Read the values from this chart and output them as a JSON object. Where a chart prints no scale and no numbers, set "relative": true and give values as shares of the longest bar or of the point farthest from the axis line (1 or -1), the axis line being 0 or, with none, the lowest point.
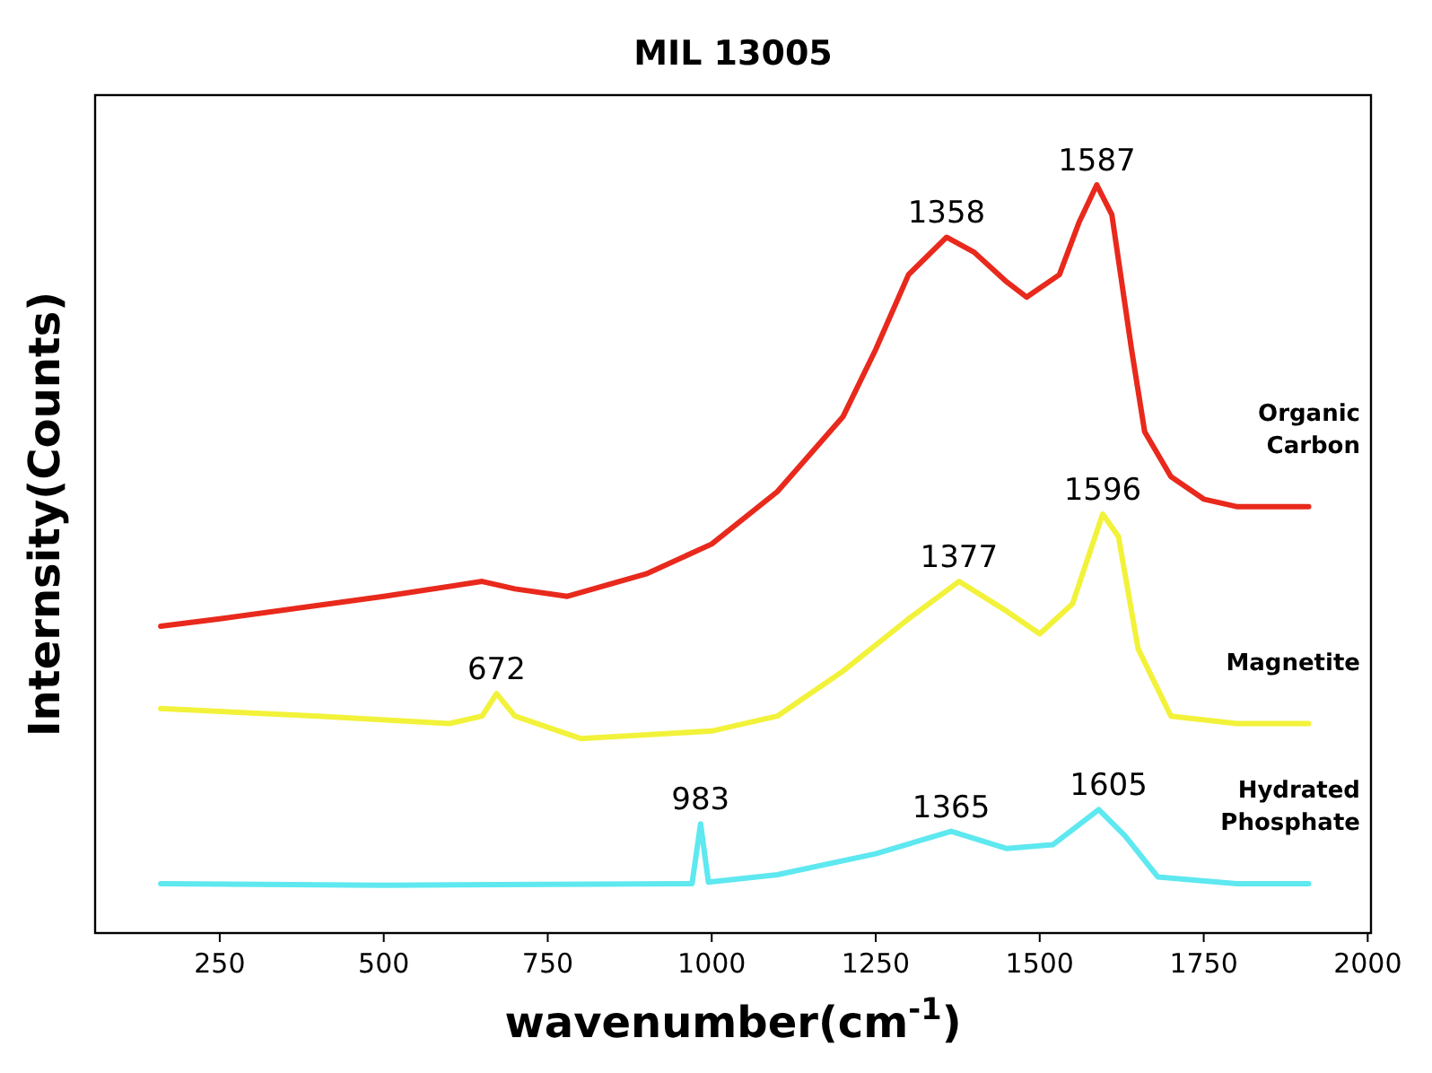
{
  "chart_data": {
    "type": "line",
    "title": "MIL 13005",
    "xlabel": "wavenumber(cm$^{-1}$)",
    "ylabel": "Internsity(Counts)",
    "relative": true,
    "tick_labels": "x",
    "grid": false,
    "xlim": [
      60,
      2005
    ],
    "xticks": [
      250,
      500,
      750,
      1000,
      1250,
      1500,
      1750,
      2000
    ],
    "series": [
      {
        "name": "Organic Carbon",
        "color": "#e8291c",
        "x": [
          160,
          250,
          500,
          650,
          700,
          780,
          900,
          1000,
          1100,
          1200,
          1250,
          1300,
          1358,
          1400,
          1450,
          1480,
          1530,
          1560,
          1587,
          1610,
          1640,
          1660,
          1700,
          1750,
          1800,
          1910
        ],
        "values": [
          0.41,
          0.42,
          0.45,
          0.47,
          0.46,
          0.45,
          0.48,
          0.52,
          0.59,
          0.69,
          0.78,
          0.88,
          0.93,
          0.91,
          0.87,
          0.85,
          0.88,
          0.95,
          1.0,
          0.96,
          0.78,
          0.67,
          0.61,
          0.58,
          0.57,
          0.57
        ]
      },
      {
        "name": "Magnetite",
        "color": "#f2f23a",
        "x": [
          160,
          400,
          600,
          650,
          672,
          700,
          800,
          1000,
          1100,
          1200,
          1300,
          1377,
          1450,
          1500,
          1550,
          1596,
          1620,
          1650,
          1700,
          1800,
          1910
        ],
        "values": [
          0.3,
          0.29,
          0.28,
          0.29,
          0.32,
          0.29,
          0.26,
          0.27,
          0.29,
          0.35,
          0.42,
          0.47,
          0.43,
          0.4,
          0.44,
          0.56,
          0.53,
          0.38,
          0.29,
          0.28,
          0.28
        ]
      },
      {
        "name": "Hydrated Phosphate",
        "color": "#5ee8f0",
        "x": [
          160,
          500,
          970,
          983,
          995,
          1100,
          1250,
          1365,
          1450,
          1520,
          1590,
          1630,
          1680,
          1800,
          1910
        ],
        "values": [
          0.066,
          0.064,
          0.066,
          0.146,
          0.068,
          0.078,
          0.106,
          0.136,
          0.113,
          0.118,
          0.165,
          0.13,
          0.075,
          0.066,
          0.066
        ]
      }
    ],
    "annotations": [
      {
        "text": "1358",
        "x": 1358,
        "y": 0.93
      },
      {
        "text": "1587",
        "x": 1587,
        "y": 1.0
      },
      {
        "text": "1377",
        "x": 1377,
        "y": 0.47
      },
      {
        "text": "1596",
        "x": 1596,
        "y": 0.56
      },
      {
        "text": "672",
        "x": 672,
        "y": 0.32
      },
      {
        "text": "983",
        "x": 983,
        "y": 0.146
      },
      {
        "text": "1365",
        "x": 1365,
        "y": 0.136
      },
      {
        "text": "1605",
        "x": 1605,
        "y": 0.165
      }
    ]
  }
}
